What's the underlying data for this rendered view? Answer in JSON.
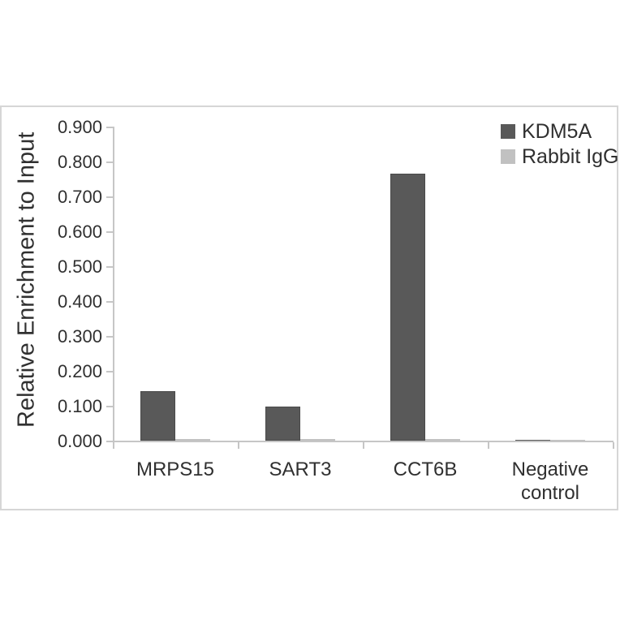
{
  "figure": {
    "background": "#ffffff",
    "panel_border_color": "#d6d6d6",
    "axis_color": "#c6c6c6",
    "text_color": "#303030"
  },
  "chart_data": {
    "type": "bar",
    "title": "",
    "xlabel": "",
    "ylabel": "Relative Enrichment to Input",
    "categories": [
      "MRPS15",
      "SART3",
      "CCT6B",
      "Negative control"
    ],
    "series": [
      {
        "name": "KDM5A",
        "color": "#595959",
        "edge_color": "#4a4a4a",
        "values": [
          0.142,
          0.097,
          0.765,
          0.003
        ]
      },
      {
        "name": "Rabbit IgG",
        "color": "#c1c1c1",
        "edge_color": "#b5b5b5",
        "values": [
          0.005,
          0.004,
          0.004,
          0.003
        ]
      }
    ],
    "ylim": [
      0,
      0.9
    ],
    "ytick_step": 0.1,
    "yticks": [
      "0.000",
      "0.100",
      "0.200",
      "0.300",
      "0.400",
      "0.500",
      "0.600",
      "0.700",
      "0.800",
      "0.900"
    ],
    "grid": false,
    "legend_position": "top-right"
  }
}
